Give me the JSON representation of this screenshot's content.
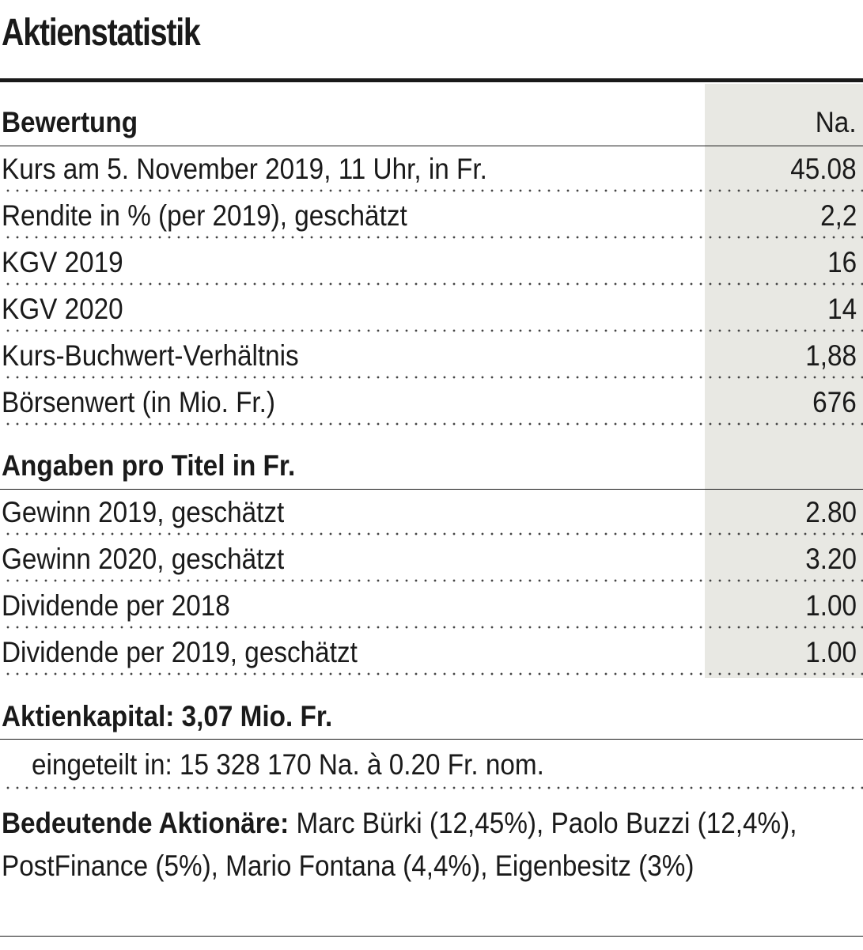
{
  "title": "Aktienstatistik",
  "section_valuation": {
    "header": "Bewertung",
    "column_header": "Na.",
    "rows": [
      {
        "label": "Kurs am 5. November 2019, 11 Uhr, in Fr.",
        "value": "45.08"
      },
      {
        "label": "Rendite in % (per 2019), geschätzt",
        "value": "2,2"
      },
      {
        "label": "KGV 2019",
        "value": "16"
      },
      {
        "label": "KGV 2020",
        "value": "14"
      },
      {
        "label": "Kurs-Buchwert-Verhältnis",
        "value": "1,88"
      },
      {
        "label": "Börsenwert (in Mio. Fr.)",
        "value": "676"
      }
    ]
  },
  "section_per_share": {
    "header": "Angaben pro Titel in Fr.",
    "rows": [
      {
        "label": "Gewinn 2019, geschätzt",
        "value": "2.80"
      },
      {
        "label": "Gewinn 2020, geschätzt",
        "value": "3.20"
      },
      {
        "label": "Dividende per 2018",
        "value": "1.00"
      },
      {
        "label": "Dividende per 2019, geschätzt",
        "value": "1.00"
      }
    ]
  },
  "share_capital": {
    "title": "Aktienkapital: 3,07 Mio. Fr.",
    "detail": "eingeteilt in: 15 328 170 Na. à 0.20 Fr. nom."
  },
  "shareholders": {
    "label": "Bedeutende Aktionäre:",
    "text": " Marc Bürki (12,45%), Paolo Buzzi (12,4%), PostFinance (5%), Mario Fontana (4,4%), Eigenbesitz (3%)"
  },
  "colors": {
    "text": "#1a1a1a",
    "value_column_shade": "#e8e8e3",
    "background": "#ffffff"
  }
}
